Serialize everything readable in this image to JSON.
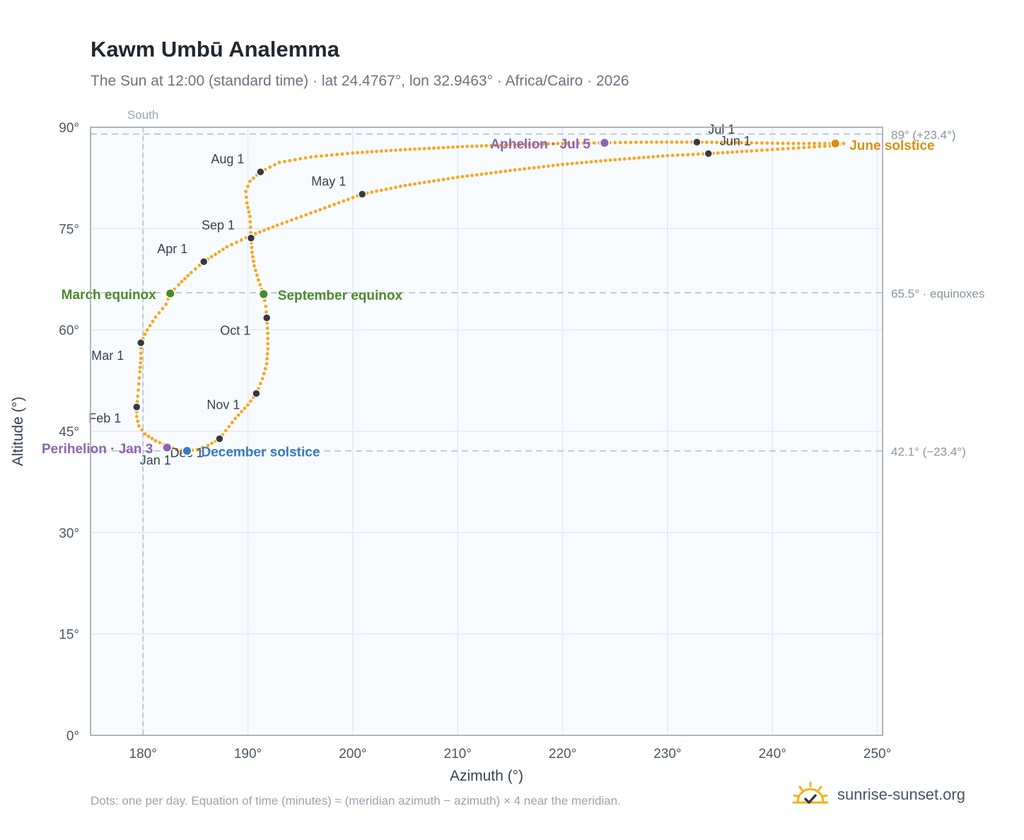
{
  "title": "Kawm Umbū Analemma",
  "subtitle": "The Sun at 12:00 (standard time) · lat 24.4767°, lon 32.9463° · Africa/Cairo · 2026",
  "footnote": "Dots: one per day. Equation of time (minutes) ≈ (meridian azimuth − azimuth) × 4 near the meridian.",
  "brand": {
    "name": "sunrise-sunset.org",
    "icon": "sun-check-icon"
  },
  "colors": {
    "curve": "#f5a623",
    "month": "#323a45",
    "equinox": "#4a8a2c",
    "june": "#d4920e",
    "december": "#3b7bbf",
    "apsis": "#8e63b0",
    "refline": "#b5bec8",
    "plot_bg": "#f8fbfe",
    "grid": "#e5eaf0"
  },
  "chart_data": {
    "type": "scatter",
    "xlabel": "Azimuth (°)",
    "ylabel": "Altitude (°)",
    "xlim": [
      175,
      250.5
    ],
    "ylim": [
      0,
      90
    ],
    "xticks": [
      180,
      190,
      200,
      210,
      220,
      230,
      240,
      250
    ],
    "yticks": [
      0,
      15,
      30,
      45,
      60,
      75,
      90
    ],
    "grid": true,
    "meridian": {
      "azimuth": 180,
      "label": "South"
    },
    "reference_lines": [
      {
        "altitude": 89,
        "label": "89° (+23.4°)"
      },
      {
        "altitude": 65.5,
        "label": "65.5° · equinoxes"
      },
      {
        "altitude": 42.1,
        "label": "42.1° (−23.4°)"
      }
    ],
    "month_markers": [
      {
        "label": "Jan 1",
        "az": 182.4,
        "alt": 42.8
      },
      {
        "label": "Feb 1",
        "az": 179.4,
        "alt": 48.6
      },
      {
        "label": "Mar 1",
        "az": 179.8,
        "alt": 58.1
      },
      {
        "label": "Apr 1",
        "az": 185.8,
        "alt": 70.1
      },
      {
        "label": "May 1",
        "az": 200.9,
        "alt": 80.1
      },
      {
        "label": "Jun 1",
        "az": 233.9,
        "alt": 86.1
      },
      {
        "label": "Jul 1",
        "az": 232.8,
        "alt": 87.8
      },
      {
        "label": "Aug 1",
        "az": 191.2,
        "alt": 83.4
      },
      {
        "label": "Sep 1",
        "az": 190.3,
        "alt": 73.6
      },
      {
        "label": "Oct 1",
        "az": 191.8,
        "alt": 61.8
      },
      {
        "label": "Nov 1",
        "az": 190.8,
        "alt": 50.6
      },
      {
        "label": "Dec 1",
        "az": 187.3,
        "alt": 43.9
      }
    ],
    "events": [
      {
        "label": "March equinox",
        "az": 182.6,
        "alt": 65.4,
        "kind": "equinox"
      },
      {
        "label": "September equinox",
        "az": 191.5,
        "alt": 65.3,
        "kind": "equinox"
      },
      {
        "label": "June solstice",
        "az": 246.0,
        "alt": 87.6,
        "kind": "june"
      },
      {
        "label": "December solstice",
        "az": 184.2,
        "alt": 42.1,
        "kind": "december"
      },
      {
        "label": "Perihelion · Jan 3",
        "az": 182.3,
        "alt": 42.6,
        "kind": "apsis"
      },
      {
        "label": "Aphelion · Jul 5",
        "az": 224.0,
        "alt": 87.7,
        "kind": "apsis"
      }
    ],
    "daily_path": [
      [
        182.4,
        42.8
      ],
      [
        181.2,
        43.6
      ],
      [
        180.2,
        44.6
      ],
      [
        179.6,
        45.8
      ],
      [
        179.4,
        47.2
      ],
      [
        179.4,
        48.6
      ],
      [
        179.5,
        50.2
      ],
      [
        179.6,
        52.0
      ],
      [
        179.7,
        53.8
      ],
      [
        179.8,
        55.8
      ],
      [
        179.8,
        58.1
      ],
      [
        180.4,
        60.0
      ],
      [
        181.2,
        61.9
      ],
      [
        182.2,
        63.8
      ],
      [
        182.6,
        65.4
      ],
      [
        183.4,
        66.7
      ],
      [
        184.6,
        68.5
      ],
      [
        185.8,
        70.1
      ],
      [
        188.0,
        72.3
      ],
      [
        190.3,
        74.0
      ],
      [
        192.8,
        75.5
      ],
      [
        196.0,
        77.3
      ],
      [
        200.9,
        80.1
      ],
      [
        205.0,
        81.4
      ],
      [
        210.0,
        82.6
      ],
      [
        215.0,
        83.6
      ],
      [
        220.0,
        84.5
      ],
      [
        225.0,
        85.2
      ],
      [
        230.0,
        85.8
      ],
      [
        233.9,
        86.1
      ],
      [
        238.0,
        86.5
      ],
      [
        242.0,
        86.9
      ],
      [
        246.0,
        87.3
      ],
      [
        246.8,
        87.6
      ],
      [
        246.0,
        87.6
      ],
      [
        242.0,
        87.6
      ],
      [
        238.0,
        87.7
      ],
      [
        232.8,
        87.8
      ],
      [
        228.0,
        87.8
      ],
      [
        224.0,
        87.7
      ],
      [
        220.0,
        87.6
      ],
      [
        215.0,
        87.4
      ],
      [
        210.0,
        87.1
      ],
      [
        205.0,
        86.7
      ],
      [
        200.0,
        86.2
      ],
      [
        196.0,
        85.6
      ],
      [
        193.0,
        84.8
      ],
      [
        191.2,
        83.4
      ],
      [
        190.2,
        82.0
      ],
      [
        189.8,
        80.5
      ],
      [
        189.9,
        78.8
      ],
      [
        190.2,
        76.8
      ],
      [
        190.3,
        73.6
      ],
      [
        190.4,
        71.5
      ],
      [
        190.6,
        69.5
      ],
      [
        191.0,
        67.4
      ],
      [
        191.5,
        65.3
      ],
      [
        191.7,
        63.5
      ],
      [
        191.8,
        61.8
      ],
      [
        191.9,
        59.5
      ],
      [
        191.9,
        57.2
      ],
      [
        191.8,
        55.0
      ],
      [
        191.4,
        52.8
      ],
      [
        190.8,
        50.6
      ],
      [
        190.0,
        48.9
      ],
      [
        188.8,
        46.9
      ],
      [
        187.3,
        43.9
      ],
      [
        186.2,
        42.9
      ],
      [
        185.2,
        42.3
      ],
      [
        184.2,
        42.1
      ],
      [
        183.2,
        42.3
      ],
      [
        182.4,
        42.8
      ]
    ]
  }
}
